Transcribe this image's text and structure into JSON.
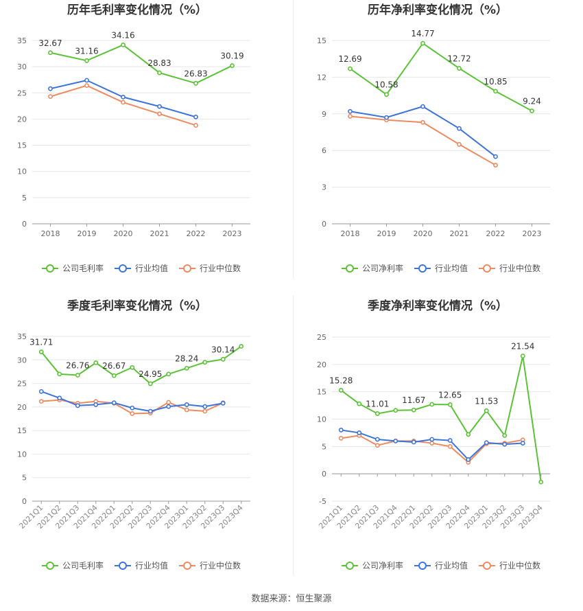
{
  "colors": {
    "company": "#5ac335",
    "industry_avg": "#3d74d9",
    "industry_median": "#ef8a5f",
    "grid": "#e6e6e6",
    "axis": "#999999",
    "text": "#333333"
  },
  "legend_labels": {
    "gross": [
      "公司毛利率",
      "行业均值",
      "行业中位数"
    ],
    "net": [
      "公司净利率",
      "行业均值",
      "行业中位数"
    ]
  },
  "footer": {
    "source": "数据来源：恒生聚源"
  },
  "chart_data": [
    {
      "type": "line",
      "title": "历年毛利率变化情况（%）",
      "categories": [
        "2018",
        "2019",
        "2020",
        "2021",
        "2022",
        "2023"
      ],
      "ylim": [
        0,
        35
      ],
      "yticks": [
        0,
        5,
        10,
        15,
        20,
        25,
        30,
        35
      ],
      "grid": true,
      "legend_position": "bottom",
      "rotate_x_labels": false,
      "series": [
        {
          "name": "公司毛利率",
          "values": [
            32.67,
            31.16,
            34.16,
            28.83,
            26.83,
            30.19
          ],
          "labels": [
            "32.67",
            "31.16",
            "34.16",
            "28.83",
            "26.83",
            "30.19"
          ]
        },
        {
          "name": "行业均值",
          "values": [
            25.8,
            27.4,
            24.2,
            22.4,
            20.4,
            null
          ]
        },
        {
          "name": "行业中位数",
          "values": [
            24.3,
            26.4,
            23.2,
            21.0,
            18.8,
            null
          ]
        }
      ]
    },
    {
      "type": "line",
      "title": "历年净利率变化情况（%）",
      "categories": [
        "2018",
        "2019",
        "2020",
        "2021",
        "2022",
        "2023"
      ],
      "ylim": [
        0,
        15
      ],
      "yticks": [
        0,
        3,
        6,
        9,
        12,
        15
      ],
      "grid": true,
      "legend_position": "bottom",
      "rotate_x_labels": false,
      "series": [
        {
          "name": "公司净利率",
          "values": [
            12.69,
            10.58,
            14.77,
            12.72,
            10.85,
            9.24
          ],
          "labels": [
            "12.69",
            "10.58",
            "14.77",
            "12.72",
            "10.85",
            "9.24"
          ]
        },
        {
          "name": "行业均值",
          "values": [
            9.2,
            8.7,
            9.6,
            7.8,
            5.5,
            null
          ]
        },
        {
          "name": "行业中位数",
          "values": [
            8.8,
            8.5,
            8.3,
            6.5,
            4.8,
            null
          ]
        }
      ]
    },
    {
      "type": "line",
      "title": "季度毛利率变化情况（%）",
      "categories": [
        "2021Q1",
        "2021Q2",
        "2021Q3",
        "2021Q4",
        "2022Q1",
        "2022Q2",
        "2022Q3",
        "2022Q4",
        "2023Q1",
        "2023Q2",
        "2023Q3",
        "2023Q4"
      ],
      "ylim": [
        0,
        35
      ],
      "yticks": [
        0,
        5,
        10,
        15,
        20,
        25,
        30,
        35
      ],
      "grid": true,
      "legend_position": "bottom",
      "rotate_x_labels": true,
      "series": [
        {
          "name": "公司毛利率",
          "values": [
            31.71,
            27.0,
            26.76,
            29.4,
            26.67,
            28.4,
            24.95,
            27.0,
            28.24,
            29.5,
            30.14,
            32.9
          ],
          "labels": [
            "31.71",
            "",
            "26.76",
            "",
            "26.67",
            "",
            "24.95",
            "",
            "28.24",
            "",
            "30.14",
            ""
          ]
        },
        {
          "name": "行业均值",
          "values": [
            23.3,
            21.9,
            20.3,
            20.5,
            20.9,
            19.8,
            19.1,
            20.1,
            20.5,
            20.1,
            20.8,
            null
          ]
        },
        {
          "name": "行业中位数",
          "values": [
            21.2,
            21.5,
            20.8,
            21.2,
            20.8,
            18.6,
            18.7,
            21.0,
            19.4,
            19.1,
            20.9,
            null
          ]
        }
      ]
    },
    {
      "type": "line",
      "title": "季度净利率变化情况（%）",
      "categories": [
        "2021Q1",
        "2021Q2",
        "2021Q3",
        "2021Q4",
        "2022Q1",
        "2022Q2",
        "2022Q3",
        "2022Q4",
        "2023Q1",
        "2023Q2",
        "2023Q3",
        "2023Q4"
      ],
      "ylim": [
        -5,
        25
      ],
      "yticks": [
        -5,
        0,
        5,
        10,
        15,
        20,
        25
      ],
      "grid": true,
      "legend_position": "bottom",
      "rotate_x_labels": true,
      "series": [
        {
          "name": "公司净利率",
          "values": [
            15.28,
            12.8,
            11.01,
            11.6,
            11.67,
            12.7,
            12.65,
            7.2,
            11.53,
            7.0,
            21.54,
            -1.5
          ],
          "labels": [
            "15.28",
            "",
            "11.01",
            "",
            "11.67",
            "",
            "12.65",
            "",
            "11.53",
            "",
            "21.54",
            ""
          ]
        },
        {
          "name": "行业均值",
          "values": [
            8.0,
            7.5,
            6.3,
            6.0,
            5.8,
            6.3,
            6.1,
            2.6,
            5.7,
            5.4,
            5.6,
            null
          ]
        },
        {
          "name": "行业中位数",
          "values": [
            6.5,
            7.0,
            5.2,
            6.0,
            6.0,
            5.6,
            5.0,
            2.1,
            5.5,
            5.6,
            6.2,
            null
          ]
        }
      ]
    }
  ]
}
